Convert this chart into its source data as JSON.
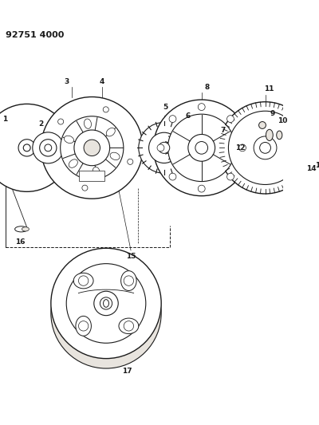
{
  "title": "92751 4000",
  "bg_color": "#ffffff",
  "line_color": "#1a1a1a",
  "gray_fill": "#d8d4cc",
  "light_gray": "#e8e4de"
}
